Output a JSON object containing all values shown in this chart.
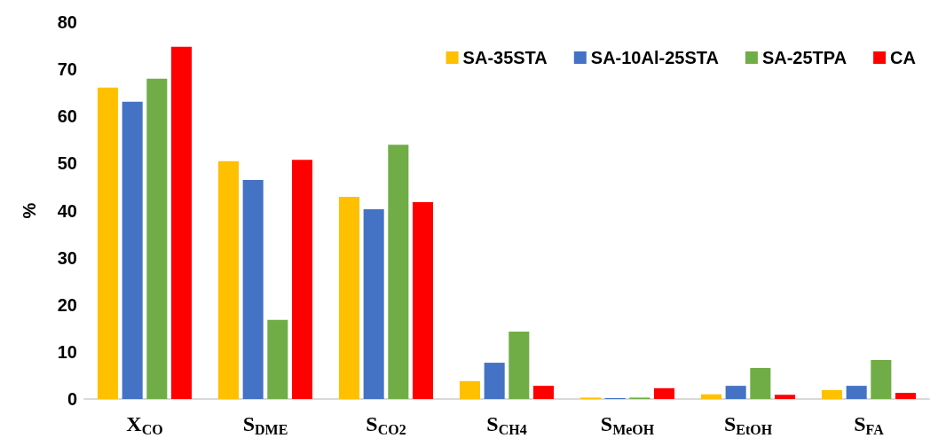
{
  "chart_data": {
    "type": "bar",
    "ylabel": "%",
    "categories": [
      "X$_{CO}$",
      "S$_{DME}$",
      "S$_{CO2}$",
      "S$_{CH4}$",
      "S$_{MeOH}$",
      "S$_{EtOH}$",
      "S$_{FA}$"
    ],
    "series": [
      {
        "name": "SA-35STA",
        "color": "#ffc000",
        "values": [
          66.1,
          50.5,
          42.9,
          3.8,
          0.3,
          1.0,
          1.9
        ]
      },
      {
        "name": "SA-10Al-25STA",
        "color": "#4472c4",
        "values": [
          63.1,
          46.5,
          40.3,
          7.7,
          0.2,
          2.8,
          2.8
        ]
      },
      {
        "name": "SA-25TPA",
        "color": "#70ad47",
        "values": [
          68.0,
          16.8,
          54.0,
          14.3,
          0.3,
          6.6,
          8.3
        ]
      },
      {
        "name": "CA",
        "color": "#ff0000",
        "values": [
          74.8,
          50.8,
          41.8,
          2.8,
          2.3,
          0.9,
          1.3
        ]
      }
    ],
    "ylim": [
      0,
      80
    ],
    "yticks": [
      0,
      10,
      20,
      30,
      40,
      50,
      60,
      70,
      80
    ],
    "grid": false,
    "legend": "top right"
  }
}
